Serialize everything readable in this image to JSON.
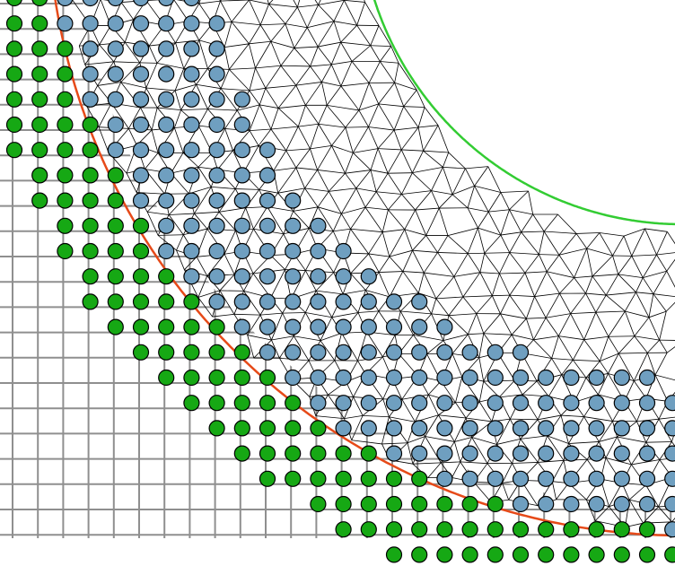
{
  "diagram": {
    "kind": "mesh-with-particles-between-two-arcs",
    "colors": {
      "background": "#ffffff",
      "grid_line": "#8f8f8f",
      "outer_boundary": "#e64a19",
      "inner_boundary": "#33cc33",
      "mesh_line": "#000000",
      "solid_particle": "#16a814",
      "fluid_particle": "#6f9fc0",
      "particle_outline": "#000000"
    },
    "legend": [],
    "title": ""
  }
}
